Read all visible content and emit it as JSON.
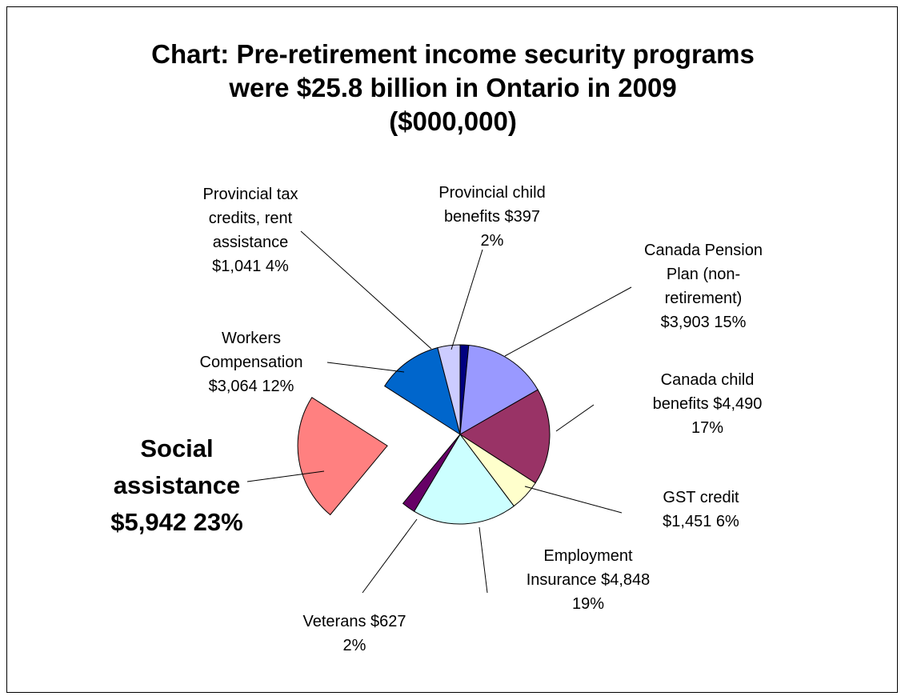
{
  "chart_data": {
    "type": "pie",
    "title_lines": [
      "Chart: Pre-retirement income security programs",
      "were $25.8 billion in Ontario in 2009",
      "($000,000)"
    ],
    "legend": "none",
    "slices": [
      {
        "name": "Provincial child benefits",
        "value": 397,
        "percent": 2,
        "color": "#000080",
        "label_lines": [
          "Provincial child",
          "benefits  $397",
          "2%"
        ]
      },
      {
        "name": "Canada Pension Plan (non-retirement)",
        "value": 3903,
        "percent": 15,
        "color": "#9999FF",
        "label_lines": [
          "Canada Pension",
          "Plan (non-",
          "retirement)",
          "$3,903  15%"
        ]
      },
      {
        "name": "Canada child benefits",
        "value": 4490,
        "percent": 17,
        "color": "#993366",
        "label_lines": [
          "Canada child",
          "benefits  $4,490",
          "17%"
        ]
      },
      {
        "name": "GST credit",
        "value": 1451,
        "percent": 6,
        "color": "#FFFFCC",
        "label_lines": [
          "GST credit",
          "$1,451  6%"
        ]
      },
      {
        "name": "Employment Insurance",
        "value": 4848,
        "percent": 19,
        "color": "#CCFFFF",
        "label_lines": [
          "Employment",
          "Insurance  $4,848",
          "19%"
        ]
      },
      {
        "name": "Veterans",
        "value": 627,
        "percent": 2,
        "color": "#660066",
        "label_lines": [
          "Veterans  $627",
          "2%"
        ]
      },
      {
        "name": "Social assistance",
        "value": 5942,
        "percent": 23,
        "color": "#FF8080",
        "exploded": true,
        "emphasis": true,
        "label_lines": [
          "Social",
          "assistance",
          "$5,942  23%"
        ]
      },
      {
        "name": "Workers Compensation",
        "value": 3064,
        "percent": 12,
        "color": "#0066CC",
        "label_lines": [
          "Workers",
          "Compensation",
          "$3,064  12%"
        ]
      },
      {
        "name": "Provincial tax credits, rent assistance",
        "value": 1041,
        "percent": 4,
        "color": "#CCCCFF",
        "label_lines": [
          "Provincial tax",
          "credits, rent",
          "assistance",
          "$1,041  4%"
        ]
      }
    ]
  }
}
